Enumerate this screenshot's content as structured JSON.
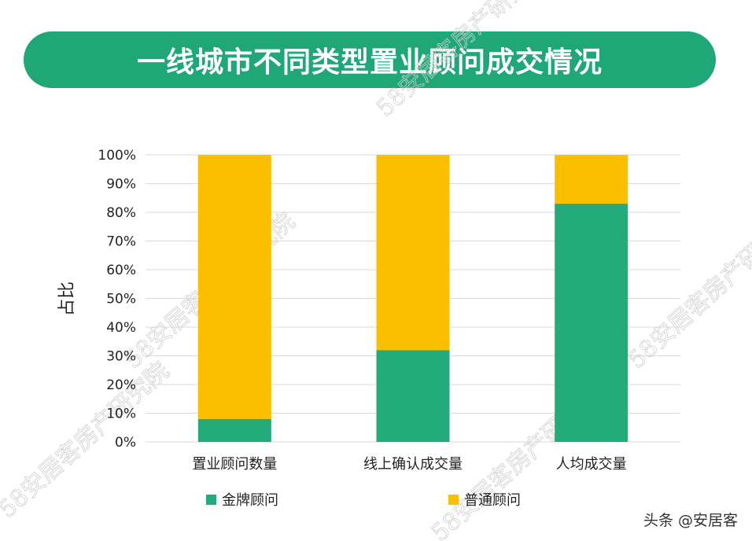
{
  "title": "一线城市不同类型置业顾问成交情况",
  "footer": "头条 @安居客",
  "watermark": "58安居客房产研究院",
  "colors": {
    "banner": "#1fa777",
    "series1": "#23ab7c",
    "series2": "#fcbf00",
    "grid": "#d9d9d9"
  },
  "chart_data": {
    "type": "bar",
    "stacked": true,
    "categories": [
      "置业顾问数量",
      "线上确认成交量",
      "人均成交量"
    ],
    "series": [
      {
        "name": "金牌顾问",
        "values": [
          8,
          32,
          83
        ]
      },
      {
        "name": "普通顾问",
        "values": [
          92,
          68,
          17
        ]
      }
    ],
    "ylabel": "占比",
    "ylim": [
      0,
      100
    ],
    "yticks": [
      "0%",
      "10%",
      "20%",
      "30%",
      "40%",
      "50%",
      "60%",
      "70%",
      "80%",
      "90%",
      "100%"
    ],
    "grid": true,
    "legend": "bottom"
  }
}
